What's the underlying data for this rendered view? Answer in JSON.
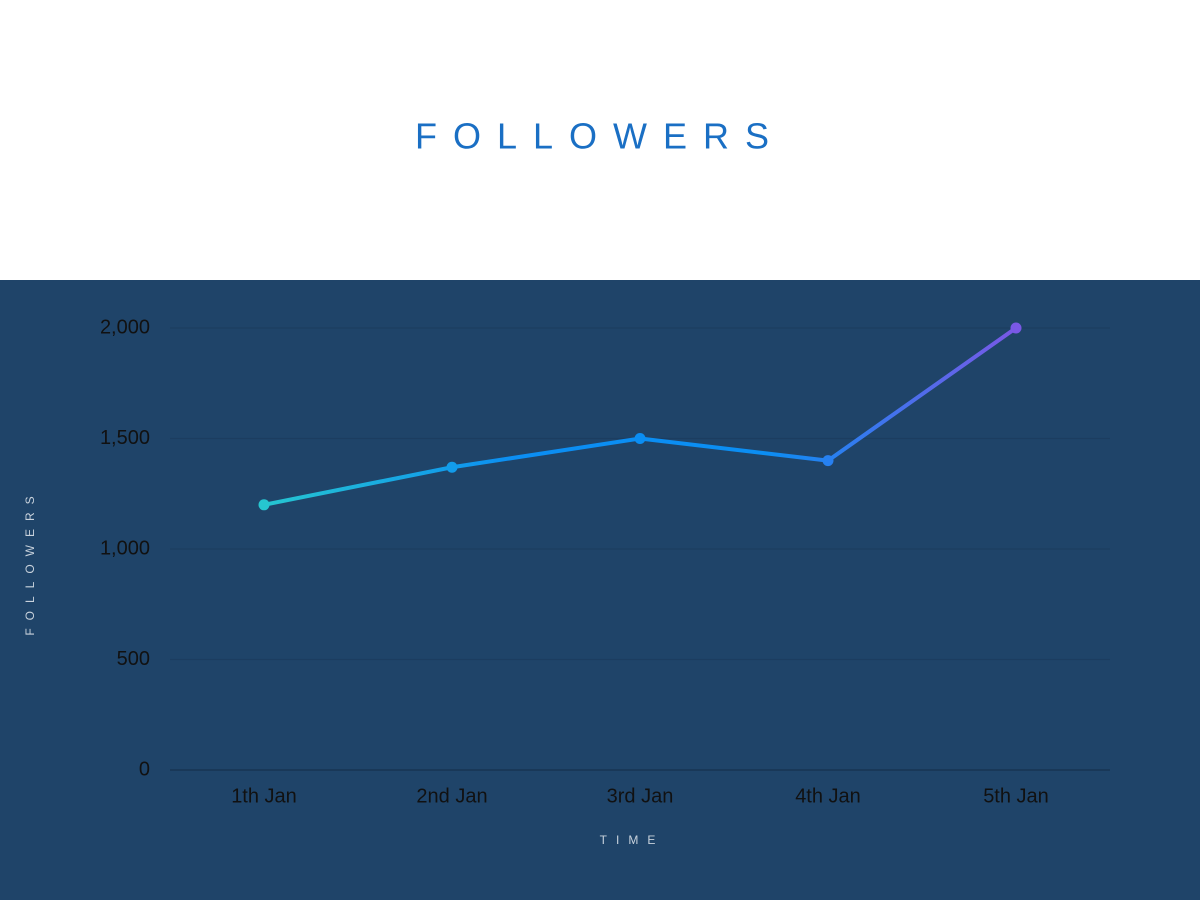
{
  "chart_data": {
    "type": "line",
    "title": "FOLLOWERS",
    "x_label": "TIME",
    "y_label": "FOLLOWERS",
    "categories": [
      "1th Jan",
      "2nd Jan",
      "3rd Jan",
      "4th Jan",
      "5th Jan"
    ],
    "values": [
      1200,
      1370,
      1500,
      1400,
      2000
    ],
    "gradient": [
      "#26c6d0",
      "#0b8ef3",
      "#0b8ef3",
      "#7a58e6"
    ],
    "ylim": [
      0,
      2000
    ],
    "yticks": [
      0,
      500,
      {
        "value": 1000,
        "label": "1,000"
      },
      {
        "value": 1500,
        "label": "1,500"
      },
      {
        "value": 2000,
        "label": "2,000"
      }
    ],
    "grid": true
  }
}
